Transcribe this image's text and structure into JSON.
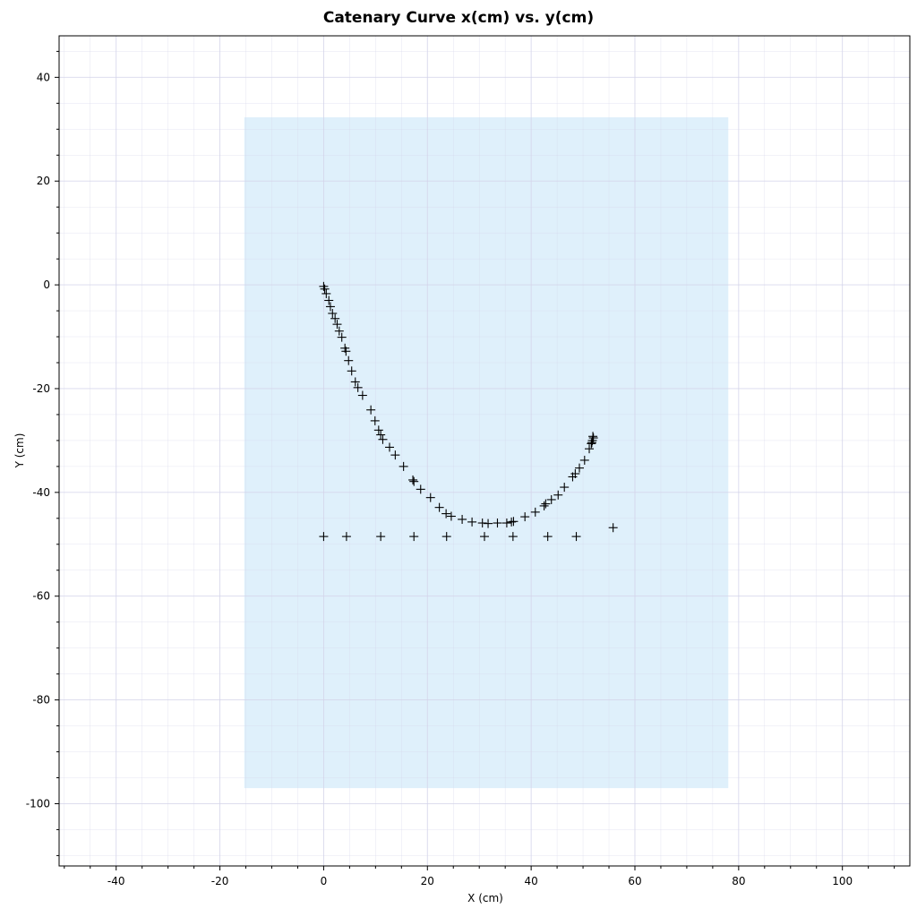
{
  "chart_data": {
    "type": "scatter",
    "title": "Catenary Curve x(cm) vs. y(cm)",
    "xlabel": "X (cm)",
    "ylabel": "Y (cm)",
    "xlim": [
      -51,
      113
    ],
    "ylim": [
      -112,
      48
    ],
    "x_ticks": [
      -40,
      -20,
      0,
      20,
      40,
      60,
      80,
      100
    ],
    "y_ticks": [
      40,
      20,
      0,
      -20,
      -40,
      -60,
      -80,
      -100
    ],
    "grid": true,
    "marker": "+",
    "marker_color": "#000000",
    "highlight_region": {
      "x": [
        -15.3,
        78
      ],
      "y": [
        -97,
        32.3
      ],
      "color": "#dff0fb"
    },
    "grid_color": "#d4d4ea",
    "series": [
      {
        "points": [
          [
            0.0,
            -0.3
          ],
          [
            0.2,
            -0.8
          ],
          [
            0.5,
            -1.7
          ],
          [
            1.0,
            -3.0
          ],
          [
            1.3,
            -4.2
          ],
          [
            1.7,
            -5.5
          ],
          [
            2.2,
            -6.5
          ],
          [
            2.6,
            -7.6
          ],
          [
            3.0,
            -8.9
          ],
          [
            3.5,
            -10.1
          ],
          [
            4.1,
            -12.2
          ],
          [
            4.3,
            -12.8
          ],
          [
            4.8,
            -14.6
          ],
          [
            5.4,
            -16.6
          ],
          [
            6.1,
            -18.7
          ],
          [
            6.6,
            -19.8
          ],
          [
            7.5,
            -21.3
          ],
          [
            9.1,
            -24.1
          ],
          [
            9.9,
            -26.2
          ],
          [
            10.6,
            -28.0
          ],
          [
            11.0,
            -28.9
          ],
          [
            11.4,
            -29.8
          ],
          [
            12.7,
            -31.3
          ],
          [
            13.8,
            -32.8
          ],
          [
            15.4,
            -35.0
          ],
          [
            17.2,
            -37.6
          ],
          [
            17.4,
            -37.9
          ],
          [
            18.7,
            -39.4
          ],
          [
            20.6,
            -41.0
          ],
          [
            22.3,
            -42.9
          ],
          [
            23.6,
            -44.1
          ],
          [
            24.6,
            -44.6
          ],
          [
            26.7,
            -45.2
          ],
          [
            28.6,
            -45.7
          ],
          [
            30.6,
            -45.9
          ],
          [
            31.7,
            -46.0
          ],
          [
            33.5,
            -45.9
          ],
          [
            35.3,
            -45.9
          ],
          [
            36.2,
            -45.7
          ],
          [
            36.6,
            -45.6
          ],
          [
            38.8,
            -44.7
          ],
          [
            40.8,
            -43.8
          ],
          [
            42.5,
            -42.6
          ],
          [
            42.8,
            -42.2
          ],
          [
            43.9,
            -41.4
          ],
          [
            45.2,
            -40.5
          ],
          [
            46.4,
            -39.0
          ],
          [
            48.0,
            -37.0
          ],
          [
            48.5,
            -36.4
          ],
          [
            49.3,
            -35.3
          ],
          [
            50.3,
            -33.8
          ],
          [
            51.2,
            -31.6
          ],
          [
            51.6,
            -30.6
          ],
          [
            51.8,
            -30.0
          ],
          [
            52.0,
            -29.5
          ],
          [
            51.7,
            -30.4
          ],
          [
            51.9,
            -29.2
          ]
        ]
      },
      {
        "points": [
          [
            0.0,
            -48.5
          ],
          [
            4.4,
            -48.5
          ],
          [
            11.0,
            -48.5
          ],
          [
            17.4,
            -48.5
          ],
          [
            23.7,
            -48.5
          ],
          [
            31.0,
            -48.5
          ],
          [
            36.5,
            -48.5
          ],
          [
            43.2,
            -48.5
          ],
          [
            48.7,
            -48.5
          ],
          [
            55.8,
            -46.8
          ]
        ]
      }
    ]
  }
}
